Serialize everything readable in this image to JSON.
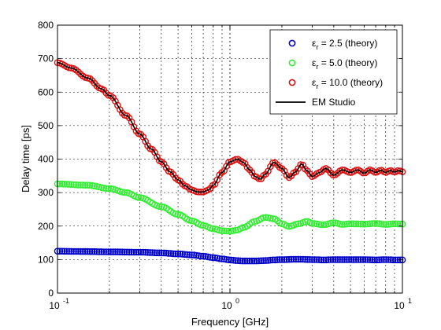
{
  "chart_data": {
    "type": "scatter",
    "xlabel": "Frequency [GHz]",
    "ylabel": "Delay time [ps]",
    "xscale": "log",
    "xlim": [
      0.1,
      10
    ],
    "ylim": [
      0,
      800
    ],
    "grid": true,
    "legend_position": "top-right",
    "x_ticks": [
      {
        "value": 0.1,
        "base": "10",
        "exp": "-1"
      },
      {
        "value": 1,
        "base": "10",
        "exp": "0"
      },
      {
        "value": 10,
        "base": "10",
        "exp": "1"
      }
    ],
    "y_ticks": [
      0,
      100,
      200,
      300,
      400,
      500,
      600,
      700,
      800
    ],
    "legend": [
      {
        "symbol": "ε",
        "sub": "r",
        "text": " = 2.5 (theory)",
        "color": "#0000cc",
        "kind": "marker"
      },
      {
        "symbol": "ε",
        "sub": "r",
        "text": " = 5.0 (theory)",
        "color": "#33ee33",
        "kind": "marker"
      },
      {
        "symbol": "ε",
        "sub": "r",
        "text": " = 10.0 (theory)",
        "color": "#dd1111",
        "kind": "marker"
      },
      {
        "symbol": "",
        "sub": "",
        "text": "EM Studio",
        "color": "#000000",
        "kind": "line"
      }
    ],
    "series": [
      {
        "name": "εr = 2.5 (theory)",
        "color": "#0000cc",
        "x": [
          0.1,
          0.15,
          0.2,
          0.3,
          0.4,
          0.5,
          0.6,
          0.7,
          0.8,
          0.9,
          1.0,
          1.1,
          1.2,
          1.4,
          1.6,
          1.8,
          2.0,
          2.5,
          3.0,
          3.5,
          4.0,
          5.0,
          6.0,
          7.0,
          8.0,
          9.0,
          10.0
        ],
        "y": [
          125,
          124,
          123,
          122,
          120,
          117,
          114,
          110,
          106,
          102,
          99,
          97,
          96,
          96,
          97,
          99,
          100,
          101,
          100,
          99,
          100,
          100,
          100,
          99,
          100,
          99,
          99
        ]
      },
      {
        "name": "εr = 5.0 (theory)",
        "color": "#33ee33",
        "x": [
          0.1,
          0.15,
          0.2,
          0.25,
          0.3,
          0.4,
          0.5,
          0.6,
          0.7,
          0.8,
          0.9,
          1.0,
          1.1,
          1.2,
          1.4,
          1.6,
          1.8,
          2.0,
          2.2,
          2.5,
          2.8,
          3.0,
          3.5,
          4.0,
          4.5,
          5.0,
          6.0,
          7.0,
          8.0,
          9.0,
          10.0
        ],
        "y": [
          326,
          322,
          312,
          300,
          285,
          258,
          235,
          216,
          202,
          192,
          186,
          185,
          188,
          196,
          214,
          226,
          222,
          207,
          199,
          207,
          214,
          208,
          204,
          210,
          205,
          207,
          206,
          208,
          205,
          207,
          206
        ]
      },
      {
        "name": "εr = 10.0 (theory)",
        "color": "#dd1111",
        "x": [
          0.1,
          0.12,
          0.15,
          0.18,
          0.2,
          0.25,
          0.3,
          0.35,
          0.4,
          0.45,
          0.5,
          0.55,
          0.6,
          0.65,
          0.7,
          0.75,
          0.8,
          0.9,
          1.0,
          1.1,
          1.2,
          1.3,
          1.4,
          1.5,
          1.6,
          1.8,
          2.0,
          2.2,
          2.4,
          2.6,
          2.8,
          3.0,
          3.3,
          3.6,
          4.0,
          4.5,
          5.0,
          5.5,
          6.0,
          6.5,
          7.0,
          7.5,
          8.0,
          8.5,
          9.0,
          9.5,
          10.0
        ],
        "y": [
          688,
          672,
          642,
          610,
          590,
          530,
          475,
          430,
          392,
          362,
          338,
          320,
          308,
          302,
          302,
          308,
          322,
          360,
          392,
          400,
          390,
          368,
          348,
          340,
          355,
          390,
          372,
          345,
          362,
          385,
          365,
          348,
          360,
          372,
          352,
          368,
          360,
          368,
          358,
          368,
          360,
          367,
          360,
          366,
          361,
          366,
          362
        ]
      },
      {
        "name": "EM Studio",
        "color": "#000000",
        "x": [
          0.1,
          0.12,
          0.15,
          0.18,
          0.2,
          0.25,
          0.3,
          0.35,
          0.4,
          0.45,
          0.5,
          0.55,
          0.6,
          0.65,
          0.7,
          0.75,
          0.8,
          0.9,
          1.0,
          1.1,
          1.2,
          1.3,
          1.4,
          1.5,
          1.6,
          1.8,
          2.0,
          2.2,
          2.4,
          2.6,
          2.8,
          3.0,
          3.3,
          3.6,
          4.0,
          4.5,
          5.0,
          5.5,
          6.0,
          6.5,
          7.0,
          7.5,
          8.0,
          8.5,
          9.0,
          9.5,
          10.0
        ],
        "y": [
          688,
          672,
          642,
          610,
          590,
          530,
          475,
          430,
          392,
          362,
          338,
          320,
          308,
          302,
          302,
          308,
          322,
          360,
          392,
          400,
          390,
          368,
          348,
          340,
          355,
          390,
          372,
          345,
          362,
          385,
          365,
          348,
          360,
          372,
          352,
          368,
          360,
          368,
          358,
          368,
          360,
          367,
          360,
          366,
          361,
          366,
          362
        ]
      }
    ]
  }
}
